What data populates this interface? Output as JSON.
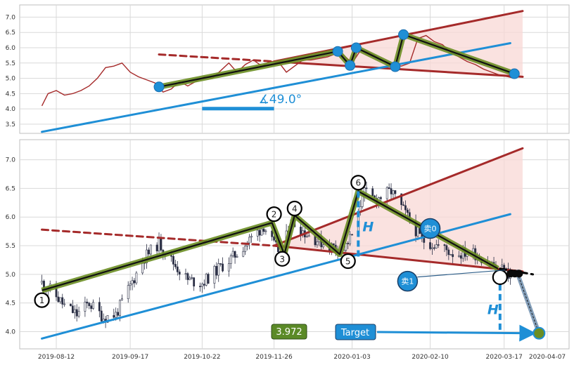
{
  "chart_data": [
    {
      "type": "line",
      "panel": "top",
      "ylim": [
        3.2,
        7.4
      ],
      "yticks": [
        3.5,
        4.0,
        4.5,
        5.0,
        5.5,
        6.0,
        6.5,
        7.0
      ],
      "grid": true,
      "series": [
        {
          "color": "#a52a2a",
          "x": [
            "2019-08-05",
            "2019-08-08",
            "2019-08-12",
            "2019-08-16",
            "2019-08-20",
            "2019-08-24",
            "2019-08-28",
            "2019-09-01",
            "2019-09-05",
            "2019-09-09",
            "2019-09-13",
            "2019-09-17",
            "2019-09-21",
            "2019-09-25",
            "2019-09-29",
            "2019-10-03",
            "2019-10-07",
            "2019-10-11",
            "2019-10-15",
            "2019-10-19",
            "2019-10-23",
            "2019-10-27",
            "2019-10-31",
            "2019-11-04",
            "2019-11-08",
            "2019-11-12",
            "2019-11-16",
            "2019-11-20",
            "2019-11-24",
            "2019-11-28",
            "2019-12-02",
            "2019-12-06",
            "2019-12-10",
            "2019-12-14",
            "2019-12-18",
            "2019-12-22",
            "2019-12-26",
            "2019-12-30",
            "2020-01-03",
            "2020-01-07",
            "2020-01-11",
            "2020-01-15",
            "2020-01-19",
            "2020-01-23",
            "2020-01-27",
            "2020-01-31",
            "2020-02-04",
            "2020-02-08",
            "2020-02-12",
            "2020-02-16",
            "2020-02-20",
            "2020-02-24",
            "2020-02-28",
            "2020-03-03",
            "2020-03-07",
            "2020-03-11",
            "2020-03-15",
            "2020-03-19",
            "2020-03-22"
          ],
          "values": [
            4.1,
            4.5,
            4.6,
            4.45,
            4.5,
            4.6,
            4.75,
            5.0,
            5.35,
            5.4,
            5.5,
            5.2,
            5.05,
            4.95,
            4.85,
            4.55,
            4.65,
            4.9,
            4.75,
            4.9,
            5.05,
            5.0,
            5.25,
            5.5,
            5.2,
            5.45,
            5.6,
            5.4,
            5.55,
            5.55,
            5.2,
            5.4,
            5.6,
            5.6,
            5.65,
            5.7,
            5.8,
            5.75,
            5.5,
            5.9,
            5.85,
            5.7,
            5.55,
            5.45,
            5.4,
            5.5,
            6.3,
            6.4,
            6.2,
            6.1,
            5.85,
            5.7,
            5.55,
            5.45,
            5.3,
            5.2,
            5.1,
            5.05,
            5.0
          ]
        }
      ],
      "trend_lines": [
        {
          "style": "solid",
          "color": "#a52a2a",
          "x": [
            "2019-11-26",
            "2020-03-26"
          ],
          "y": [
            5.55,
            5.05
          ]
        },
        {
          "style": "dashed",
          "color": "#a52a2a",
          "x": [
            "2019-10-01",
            "2019-11-26"
          ],
          "y": [
            5.78,
            5.55
          ]
        },
        {
          "style": "solid",
          "color": "#a52a2a",
          "x": [
            "2019-11-26",
            "2020-03-26"
          ],
          "y": [
            5.55,
            7.2
          ]
        },
        {
          "style": "solid",
          "color": "#1f8fd6",
          "x": [
            "2019-08-05",
            "2020-03-20"
          ],
          "y": [
            3.25,
            6.15
          ]
        }
      ],
      "zigzag_points": [
        {
          "x": "2019-10-01",
          "y": 4.72
        },
        {
          "x": "2019-12-27",
          "y": 5.88
        },
        {
          "x": "2020-01-02",
          "y": 5.42
        },
        {
          "x": "2020-01-05",
          "y": 6.0
        },
        {
          "x": "2020-01-24",
          "y": 5.38
        },
        {
          "x": "2020-01-28",
          "y": 6.43
        },
        {
          "x": "2020-03-22",
          "y": 5.15
        }
      ],
      "angle_label": "∡49.0°",
      "angle_x": [
        "2019-10-22",
        "2019-11-26"
      ],
      "angle_y": 4.1
    },
    {
      "type": "candlestick",
      "panel": "bottom",
      "ylim": [
        3.7,
        7.35
      ],
      "yticks": [
        4.0,
        4.5,
        5.0,
        5.5,
        6.0,
        6.5,
        7.0
      ],
      "x_ticks": [
        "2019-08-12",
        "2019-09-17",
        "2019-10-22",
        "2019-11-26",
        "2020-01-03",
        "2020-02-10",
        "2020-03-17",
        "2020-04-07"
      ],
      "grid": true,
      "price_path": [
        {
          "x": "2019-08-05",
          "y": 4.85
        },
        {
          "x": "2019-08-10",
          "y": 4.7
        },
        {
          "x": "2019-08-16",
          "y": 4.45
        },
        {
          "x": "2019-08-22",
          "y": 4.3
        },
        {
          "x": "2019-08-28",
          "y": 4.5
        },
        {
          "x": "2019-09-04",
          "y": 4.25
        },
        {
          "x": "2019-09-10",
          "y": 4.3
        },
        {
          "x": "2019-09-17",
          "y": 4.8
        },
        {
          "x": "2019-09-24",
          "y": 5.3
        },
        {
          "x": "2019-10-01",
          "y": 5.55
        },
        {
          "x": "2019-10-08",
          "y": 5.2
        },
        {
          "x": "2019-10-15",
          "y": 4.9
        },
        {
          "x": "2019-10-22",
          "y": 4.85
        },
        {
          "x": "2019-10-30",
          "y": 5.1
        },
        {
          "x": "2019-11-06",
          "y": 5.3
        },
        {
          "x": "2019-11-14",
          "y": 5.6
        },
        {
          "x": "2019-11-21",
          "y": 5.85
        },
        {
          "x": "2019-11-26",
          "y": 5.5
        },
        {
          "x": "2019-11-30",
          "y": 5.35
        },
        {
          "x": "2019-12-04",
          "y": 5.95
        },
        {
          "x": "2019-12-12",
          "y": 5.7
        },
        {
          "x": "2019-12-22",
          "y": 5.5
        },
        {
          "x": "2019-12-30",
          "y": 5.45
        },
        {
          "x": "2020-01-05",
          "y": 5.8
        },
        {
          "x": "2020-01-08",
          "y": 6.45
        },
        {
          "x": "2020-01-14",
          "y": 6.3
        },
        {
          "x": "2020-01-22",
          "y": 6.45
        },
        {
          "x": "2020-01-30",
          "y": 6.0
        },
        {
          "x": "2020-02-06",
          "y": 5.6
        },
        {
          "x": "2020-02-14",
          "y": 5.5
        },
        {
          "x": "2020-02-22",
          "y": 5.35
        },
        {
          "x": "2020-03-01",
          "y": 5.4
        },
        {
          "x": "2020-03-08",
          "y": 5.25
        },
        {
          "x": "2020-03-15",
          "y": 5.1
        },
        {
          "x": "2020-03-22",
          "y": 4.95
        }
      ],
      "trend_lines": [
        {
          "style": "solid",
          "color": "#a52a2a",
          "x": [
            "2019-11-26",
            "2020-03-26"
          ],
          "y": [
            5.5,
            5.05
          ]
        },
        {
          "style": "dashed",
          "color": "#a52a2a",
          "x": [
            "2019-08-05",
            "2019-11-26"
          ],
          "y": [
            5.78,
            5.5
          ]
        },
        {
          "style": "solid",
          "color": "#a52a2a",
          "x": [
            "2019-11-26",
            "2020-03-26"
          ],
          "y": [
            5.5,
            7.2
          ]
        },
        {
          "style": "solid",
          "color": "#1f8fd6",
          "x": [
            "2019-08-05",
            "2020-03-20"
          ],
          "y": [
            3.88,
            6.05
          ]
        },
        {
          "style": "dashed",
          "color": "#000000",
          "x": [
            "2020-03-15",
            "2020-03-31"
          ],
          "y": [
            5.1,
            5.0
          ]
        }
      ],
      "zigzag_points": [
        {
          "x": "2019-08-05",
          "y": 4.72
        },
        {
          "x": "2019-11-25",
          "y": 5.9
        },
        {
          "x": "2019-12-01",
          "y": 5.35
        },
        {
          "x": "2019-12-06",
          "y": 6.03
        },
        {
          "x": "2019-12-28",
          "y": 5.35
        },
        {
          "x": "2020-01-06",
          "y": 6.45
        },
        {
          "x": "2020-03-14",
          "y": 5.1
        }
      ],
      "pivots": [
        {
          "label": "1",
          "x": "2019-08-05",
          "y": 4.55
        },
        {
          "label": "2",
          "x": "2019-11-26",
          "y": 6.05
        },
        {
          "label": "3",
          "x": "2019-11-30",
          "y": 5.27
        },
        {
          "label": "4",
          "x": "2019-12-06",
          "y": 6.15
        },
        {
          "label": "5",
          "x": "2020-01-01",
          "y": 5.23
        },
        {
          "label": "6",
          "x": "2020-01-06",
          "y": 6.6
        },
        {
          "label": "",
          "x": "2020-03-15",
          "y": 4.95
        }
      ],
      "height_marks": [
        {
          "label": "H",
          "x": "2020-01-06",
          "y_from": 6.45,
          "y_to": 5.3
        },
        {
          "label": "H",
          "x": "2020-03-15",
          "y_from": 5.0,
          "y_to": 4.0
        }
      ],
      "sell_signals": [
        {
          "label": "卖0",
          "x": "2020-02-10",
          "y": 5.8
        },
        {
          "label": "卖1",
          "x": "2020-01-30",
          "y": 4.88
        }
      ],
      "price_label": "3.972",
      "target_label": "Target",
      "target": {
        "x": "2020-04-03",
        "y": 3.972
      }
    }
  ]
}
